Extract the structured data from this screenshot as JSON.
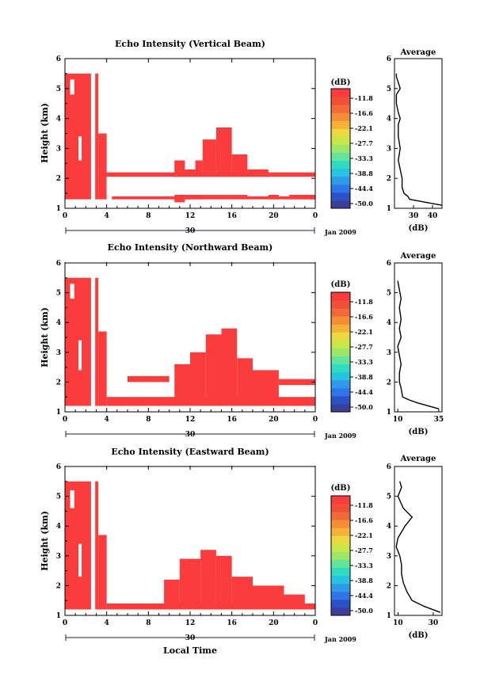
{
  "colorbar": {
    "unit_label": "(dB)",
    "ticks": [
      "-11.8",
      "-16.6",
      "-22.1",
      "-27.7",
      "-33.3",
      "-38.8",
      "-44.4",
      "-50.0"
    ],
    "colors": [
      "#3b3f9a",
      "#2c52c8",
      "#2e76e8",
      "#2f9be8",
      "#27c4e2",
      "#2fdcc2",
      "#62e49a",
      "#9ce66a",
      "#c8e648",
      "#ecd840",
      "#f6b238",
      "#f58c36",
      "#f26a3a",
      "#f05038",
      "#fa3c3c"
    ]
  },
  "shared_axes": {
    "time_ticks": [
      "0",
      "4",
      "8",
      "12",
      "16",
      "20",
      "0"
    ],
    "height_ticks": [
      "1",
      "2",
      "3",
      "4",
      "5",
      "6"
    ],
    "ylabel": "Height (km)",
    "date_day": "30",
    "date_month": "Jan 2009",
    "xlabel": "Local Time",
    "profile_title": "Average",
    "profile_xlabel": "(dB)"
  },
  "chart_data": [
    {
      "type": "heatmap",
      "title": "Echo Intensity (Vertical Beam)",
      "xlim": [
        0,
        24
      ],
      "ylim": [
        1,
        6
      ],
      "echo_color": "#fa3c3c",
      "blocks": [
        [
          0,
          2.5,
          1.3,
          5.5
        ],
        [
          2.9,
          3.2,
          1.3,
          5.5
        ],
        [
          3.2,
          4.0,
          1.3,
          3.5
        ],
        [
          4.0,
          24,
          2.05,
          2.2
        ],
        [
          4.5,
          24,
          1.3,
          1.4
        ],
        [
          10.5,
          11.5,
          1.2,
          2.6
        ],
        [
          11.5,
          12.5,
          1.3,
          2.3
        ],
        [
          12.5,
          13.2,
          1.3,
          2.6
        ],
        [
          13.2,
          14.5,
          1.4,
          3.3
        ],
        [
          14.5,
          16.0,
          1.4,
          3.7
        ],
        [
          16.0,
          17.5,
          1.4,
          2.8
        ],
        [
          17.5,
          19.5,
          1.5,
          2.3
        ],
        [
          19.5,
          20.5,
          1.3,
          1.9
        ],
        [
          21.5,
          24,
          1.3,
          1.5
        ]
      ],
      "gaps": [
        [
          0.5,
          0.9,
          4.8,
          5.3
        ],
        [
          1.3,
          1.6,
          2.6,
          3.4
        ],
        [
          4,
          24,
          1.45,
          2.05
        ]
      ],
      "profile": {
        "xlim": [
          20,
          45
        ],
        "xticks": [
          "30",
          "40"
        ],
        "heights": [
          1.1,
          1.3,
          1.4,
          1.5,
          1.7,
          2.0,
          2.3,
          2.6,
          3.0,
          3.4,
          3.8,
          4.0,
          4.2,
          4.5,
          4.8,
          5.0,
          5.2,
          5.4,
          5.5
        ],
        "values": [
          45,
          28,
          27,
          25,
          24,
          24,
          23,
          22,
          23,
          22,
          22,
          23,
          22,
          21,
          21,
          23,
          22,
          21,
          21
        ]
      }
    },
    {
      "type": "heatmap",
      "title": "Echo Intensity (Northward Beam)",
      "xlim": [
        0,
        24
      ],
      "ylim": [
        1,
        6
      ],
      "echo_color": "#fa3c3c",
      "blocks": [
        [
          0,
          2.5,
          1.2,
          5.5
        ],
        [
          2.9,
          3.2,
          1.2,
          5.5
        ],
        [
          3.2,
          4.0,
          1.2,
          3.7
        ],
        [
          4.0,
          24,
          1.2,
          1.5
        ],
        [
          6.0,
          10.0,
          2.0,
          2.2
        ],
        [
          10.5,
          12.0,
          1.4,
          2.6
        ],
        [
          12.0,
          13.5,
          1.3,
          3.0
        ],
        [
          13.5,
          15.0,
          1.3,
          3.6
        ],
        [
          15.0,
          16.5,
          1.3,
          3.8
        ],
        [
          16.5,
          18.0,
          1.3,
          2.8
        ],
        [
          18.0,
          20.5,
          1.3,
          2.4
        ],
        [
          20.5,
          24,
          1.9,
          2.1
        ]
      ],
      "gaps": [
        [
          0.5,
          0.9,
          4.8,
          5.3
        ],
        [
          1.3,
          1.6,
          2.4,
          3.4
        ]
      ],
      "profile": {
        "xlim": [
          8,
          37
        ],
        "xticks": [
          "10",
          "35"
        ],
        "heights": [
          1.1,
          1.3,
          1.4,
          1.5,
          1.8,
          2.0,
          2.3,
          2.6,
          2.9,
          3.2,
          3.5,
          3.8,
          4.1,
          4.5,
          4.8,
          5.1,
          5.4
        ],
        "values": [
          35,
          22,
          17,
          13,
          12,
          11,
          11,
          12,
          11,
          10,
          12,
          11,
          12,
          11,
          12,
          11,
          10
        ]
      }
    },
    {
      "type": "heatmap",
      "title": "Echo Intensity (Eastward Beam)",
      "xlim": [
        0,
        24
      ],
      "ylim": [
        1,
        6
      ],
      "echo_color": "#fa3c3c",
      "blocks": [
        [
          0,
          2.5,
          1.2,
          5.5
        ],
        [
          2.9,
          3.2,
          1.2,
          5.5
        ],
        [
          3.2,
          4.0,
          1.2,
          3.7
        ],
        [
          4.0,
          24,
          1.2,
          1.4
        ],
        [
          9.5,
          11.0,
          1.3,
          2.2
        ],
        [
          11.0,
          13.0,
          1.3,
          2.9
        ],
        [
          13.0,
          14.5,
          1.3,
          3.2
        ],
        [
          14.5,
          16.0,
          1.3,
          3.0
        ],
        [
          16.0,
          18.0,
          1.3,
          2.3
        ],
        [
          18.0,
          21.0,
          1.3,
          2.0
        ],
        [
          21.0,
          23.0,
          1.3,
          1.7
        ]
      ],
      "gaps": [
        [
          0.5,
          0.9,
          4.6,
          5.2
        ],
        [
          1.3,
          1.6,
          2.3,
          3.4
        ]
      ],
      "profile": {
        "xlim": [
          8,
          35
        ],
        "xticks": [
          "10",
          "30"
        ],
        "heights": [
          1.1,
          1.3,
          1.5,
          1.8,
          2.1,
          2.4,
          2.7,
          3.0,
          3.3,
          3.6,
          4.0,
          4.3,
          4.6,
          5.0,
          5.3,
          5.5
        ],
        "values": [
          34,
          25,
          18,
          15,
          13,
          12,
          12,
          11,
          9,
          10,
          14,
          18,
          13,
          10,
          12,
          11
        ]
      }
    }
  ]
}
